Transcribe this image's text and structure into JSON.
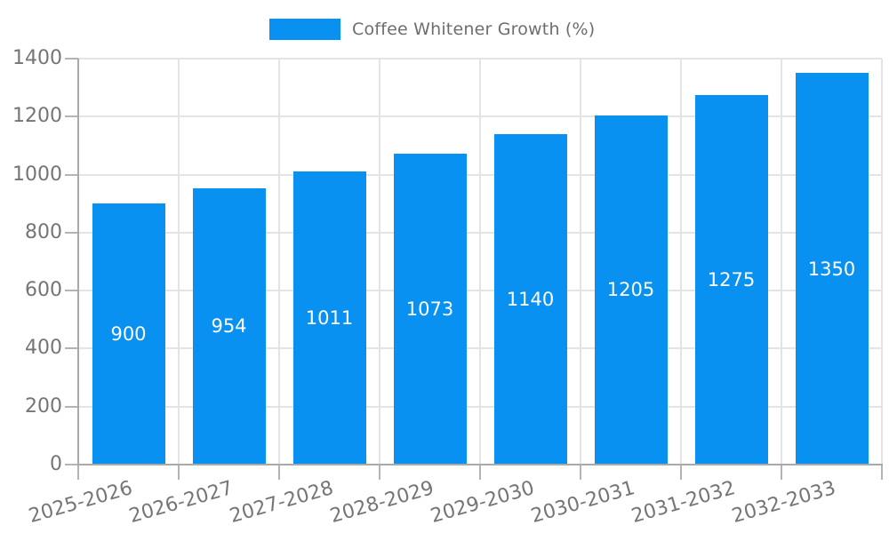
{
  "legend": {
    "label": "Coffee Whitener Growth (%)"
  },
  "chart_data": {
    "type": "bar",
    "title": "Coffee Whitener Growth (%)",
    "series_name": "Coffee Whitener Growth (%)",
    "categories": [
      "2025-2026",
      "2026-2027",
      "2027-2028",
      "2028-2029",
      "2029-2030",
      "2030-2031",
      "2031-2032",
      "2032-2033"
    ],
    "values": [
      900,
      954,
      1011,
      1073,
      1140,
      1205,
      1275,
      1350
    ],
    "value_labels": [
      "900",
      "954",
      "1011",
      "1073",
      "1140",
      "1205",
      "1275",
      "1350"
    ],
    "ytick_labels": [
      "0",
      "200",
      "400",
      "600",
      "800",
      "1000",
      "1200",
      "1400"
    ],
    "ylim": [
      0,
      1400
    ],
    "ytick_step": 200,
    "grid": true,
    "legend_position": "top-center",
    "xlabel": "",
    "ylabel": ""
  },
  "colors": {
    "bar": "#0991f1",
    "axis": "#a9a9a9",
    "tick": "#b4b4b4",
    "grid": "#e4e4e4",
    "tick_label": "#757575",
    "legend_label": "#6e6e6e",
    "value_label": "#ffffff",
    "background": "#ffffff"
  }
}
